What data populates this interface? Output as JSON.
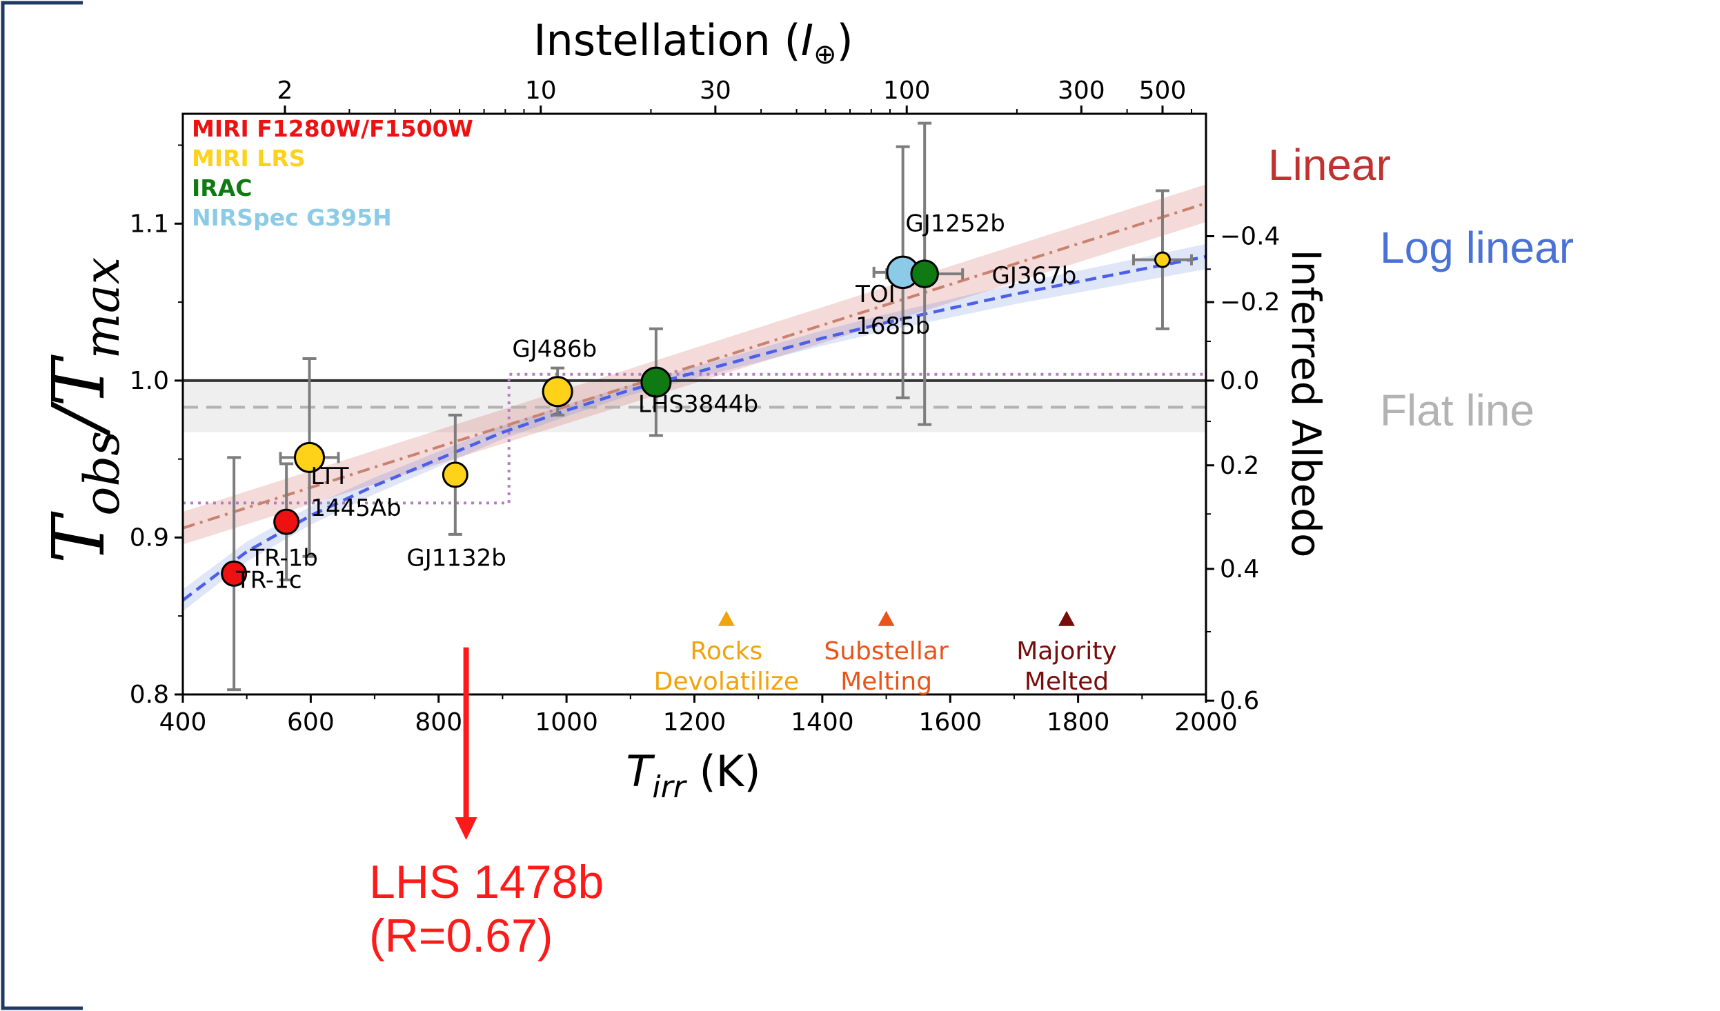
{
  "colors": {
    "miri_photometry": "#ee1111",
    "miri_lrs": "#ffd21a",
    "irac": "#0f7a12",
    "nirspec": "#8ccbe8",
    "linear": "#c0322f",
    "log_linear": "#4a72d6",
    "flat": "#b3b3b3",
    "step": "#b57cc0",
    "rocks": "#f0a30a",
    "substellar": "#e8541a",
    "melted": "#7a0b0b",
    "arrow": "#ff1a1a"
  },
  "side_labels": {
    "linear": "Linear",
    "log_linear": "Log linear",
    "flat": "Flat line"
  },
  "annotation": {
    "line1": "LHS 1478b",
    "line2": "(R=0.67)"
  },
  "chart_data": {
    "type": "scatter",
    "title": "",
    "xlabel": "T_irr (K)",
    "ylabel": "T_obs / T_max",
    "top_xlabel": "Instellation (I⊕)",
    "right_ylabel": "Inferred Albedo",
    "xlim": [
      400,
      2000
    ],
    "ylim": [
      0.8,
      1.17
    ],
    "x_ticks": [
      400,
      600,
      800,
      1000,
      1200,
      1400,
      1600,
      1800,
      2000
    ],
    "y_ticks": [
      0.8,
      0.9,
      1.0,
      1.1
    ],
    "top_ticks": [
      {
        "label": "2",
        "value": 2
      },
      {
        "label": "10",
        "value": 10
      },
      {
        "label": "30",
        "value": 30
      },
      {
        "label": "100",
        "value": 100
      },
      {
        "label": "300",
        "value": 300
      },
      {
        "label": "500",
        "value": 500
      }
    ],
    "top_minor_ticks": [
      3,
      4,
      5,
      6,
      7,
      8,
      9,
      20,
      40,
      50,
      60,
      70,
      80,
      90,
      200,
      400,
      600
    ],
    "albedo_ticks": [
      {
        "label": "−0.4",
        "y": 1.092
      },
      {
        "label": "−0.2",
        "y": 1.05
      },
      {
        "label": "0.0",
        "y": 1.0
      },
      {
        "label": "0.2",
        "y": 0.946
      },
      {
        "label": "0.4",
        "y": 0.88
      },
      {
        "label": "0.6",
        "y": 0.796
      }
    ],
    "legend": [
      {
        "label": "MIRI F1280W/F1500W",
        "color": "#ee1111"
      },
      {
        "label": "MIRI LRS",
        "color": "#ffd21a"
      },
      {
        "label": "IRAC",
        "color": "#0f7a12"
      },
      {
        "label": "NIRSpec G395H",
        "color": "#8ccbe8"
      }
    ],
    "legend_position": "top-left",
    "points": [
      {
        "name": "TR-1c",
        "x": 480,
        "y": 0.877,
        "yerr": 0.074,
        "instrument": "MIRI F1280W/F1500W",
        "size": 10
      },
      {
        "name": "TR-1b",
        "x": 562,
        "y": 0.91,
        "yerr": 0.037,
        "instrument": "MIRI F1280W/F1500W",
        "size": 10
      },
      {
        "name": "LTT 1445Ab",
        "x": 598,
        "y": 0.951,
        "yerr": 0.063,
        "instrument": "MIRI LRS",
        "size": 12
      },
      {
        "name": "GJ1132b",
        "x": 826,
        "y": 0.94,
        "yerr": 0.038,
        "instrument": "MIRI LRS",
        "size": 10
      },
      {
        "name": "GJ486b",
        "x": 986,
        "y": 0.993,
        "yerr": 0.015,
        "instrument": "MIRI LRS",
        "size": 12
      },
      {
        "name": "LHS3844b",
        "x": 1140,
        "y": 0.999,
        "yerr": 0.034,
        "instrument": "IRAC",
        "size": 12
      },
      {
        "name": "TOI 1685b",
        "x": 1526,
        "y": 1.069,
        "yerr": 0.08,
        "instrument": "NIRSpec G395H",
        "size": 13
      },
      {
        "name": "GJ1252b",
        "x": 1560,
        "y": 1.068,
        "yerr": 0.096,
        "instrument": "IRAC",
        "size": 11
      },
      {
        "name": "GJ367b",
        "x": 1932,
        "y": 1.077,
        "yerr": 0.044,
        "instrument": "MIRI LRS",
        "size": 6
      }
    ],
    "point_labels": [
      {
        "lines": [
          "TR-1c"
        ],
        "x": 483,
        "y": 0.868
      },
      {
        "lines": [
          "TR-1b"
        ],
        "x": 505,
        "y": 0.882
      },
      {
        "lines": [
          "LTT",
          "1445Ab"
        ],
        "x": 600,
        "y": 0.934
      },
      {
        "lines": [
          "GJ1132b"
        ],
        "x": 750,
        "y": 0.882
      },
      {
        "lines": [
          "GJ486b"
        ],
        "x": 915,
        "y": 1.015
      },
      {
        "lines": [
          "LHS3844b"
        ],
        "x": 1112,
        "y": 0.98
      },
      {
        "lines": [
          "TOI",
          "1685b"
        ],
        "x": 1452,
        "y": 1.05
      },
      {
        "lines": [
          "GJ1252b"
        ],
        "x": 1530,
        "y": 1.095
      },
      {
        "lines": [
          "GJ367b"
        ],
        "x": 1665,
        "y": 1.062
      }
    ],
    "reference_lines": [
      {
        "name": "Tobs = Tmax",
        "y": 1.0
      },
      {
        "name": "Flat line",
        "y": 0.983,
        "band": [
          0.967,
          0.999
        ]
      }
    ],
    "step_line": {
      "low": 0.922,
      "high": 1.004,
      "x_step": 910,
      "x_end": 2000
    },
    "models": [
      {
        "name": "Linear",
        "x": [
          400,
          2000
        ],
        "y": [
          0.906,
          1.113
        ],
        "band": 0.012
      },
      {
        "name": "Log linear",
        "x": [
          400,
          500,
          600,
          700,
          800,
          900,
          1000,
          1100,
          1200,
          1300,
          1400,
          1500,
          1600,
          1700,
          1800,
          1900,
          2000
        ],
        "y": [
          0.86,
          0.891,
          0.914,
          0.933,
          0.95,
          0.967,
          0.981,
          0.994,
          1.005,
          1.016,
          1.027,
          1.037,
          1.046,
          1.055,
          1.063,
          1.071,
          1.079
        ],
        "band": 0.008
      }
    ],
    "markers": [
      {
        "label": [
          "Rocks",
          "Devolatilize"
        ],
        "x": 1250,
        "y": 0.848,
        "color": "#f0a30a"
      },
      {
        "label": [
          "Substellar",
          "Melting"
        ],
        "x": 1500,
        "y": 0.848,
        "color": "#e8541a"
      },
      {
        "label": [
          "Majority",
          "Melted"
        ],
        "x": 1782,
        "y": 0.848,
        "color": "#7a0b0b"
      }
    ],
    "arrow": {
      "x": 843,
      "from_y": 0.83,
      "to_y": "below-axis"
    },
    "grid": false
  }
}
